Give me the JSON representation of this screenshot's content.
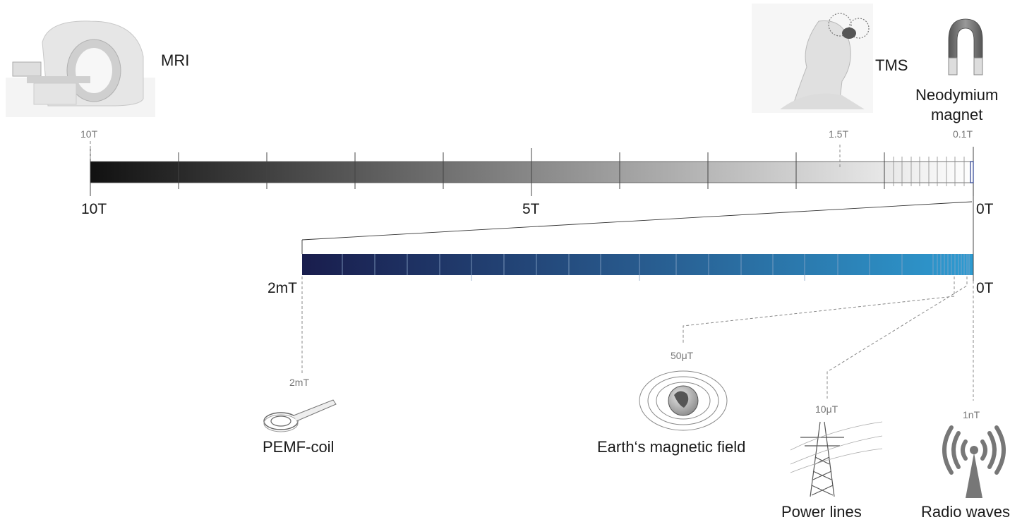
{
  "top_scale": {
    "left_label": "10T",
    "mid_label": "5T",
    "right_label": "0T",
    "gradient_from": "#111111",
    "gradient_to": "#ffffff",
    "min": 0,
    "max": 10,
    "unit": "T"
  },
  "bottom_scale": {
    "left_label": "2mT",
    "right_label": "0T",
    "gradient_from": "#191d4d",
    "gradient_to": "#2e9bd1",
    "min": 0,
    "max": 2,
    "unit": "mT"
  },
  "markers": [
    {
      "id": "mri",
      "name": "MRI",
      "value_label": "10T",
      "icon": "mri-scanner-icon"
    },
    {
      "id": "tms",
      "name": "TMS",
      "value_label": "1.5T",
      "icon": "tms-head-icon"
    },
    {
      "id": "neodymium",
      "name": "Neodymium\nmagnet",
      "value_label": "0.1T",
      "icon": "horseshoe-magnet-icon"
    },
    {
      "id": "pemf",
      "name": "PEMF-coil",
      "value_label": "2mT",
      "icon": "pemf-coil-icon"
    },
    {
      "id": "earth",
      "name": "Earth‘s magnetic field",
      "value_label": "50μT",
      "icon": "earth-field-icon"
    },
    {
      "id": "power",
      "name": "Power lines",
      "value_label": "10μT",
      "icon": "power-tower-icon"
    },
    {
      "id": "radio",
      "name": "Radio waves",
      "value_label": "1nT",
      "icon": "radio-antenna-icon"
    }
  ]
}
